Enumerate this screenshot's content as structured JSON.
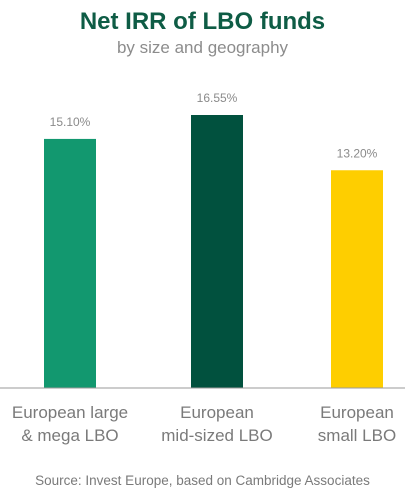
{
  "chart_data": {
    "type": "bar",
    "title": "Net IRR of LBO funds",
    "subtitle": "by size and geography",
    "categories": [
      [
        "European large",
        "& mega LBO"
      ],
      [
        "European",
        "mid-sized LBO"
      ],
      [
        "European",
        "small LBO"
      ]
    ],
    "values": [
      15.1,
      16.55,
      13.2
    ],
    "value_labels": [
      "15.10%",
      "16.55%",
      "13.20%"
    ],
    "colors": [
      "#12986f",
      "#01513e",
      "#fece00"
    ],
    "ylim": [
      0,
      16.55
    ],
    "grid": false,
    "source": "Source: Invest Europe, based on Cambridge Associates"
  }
}
